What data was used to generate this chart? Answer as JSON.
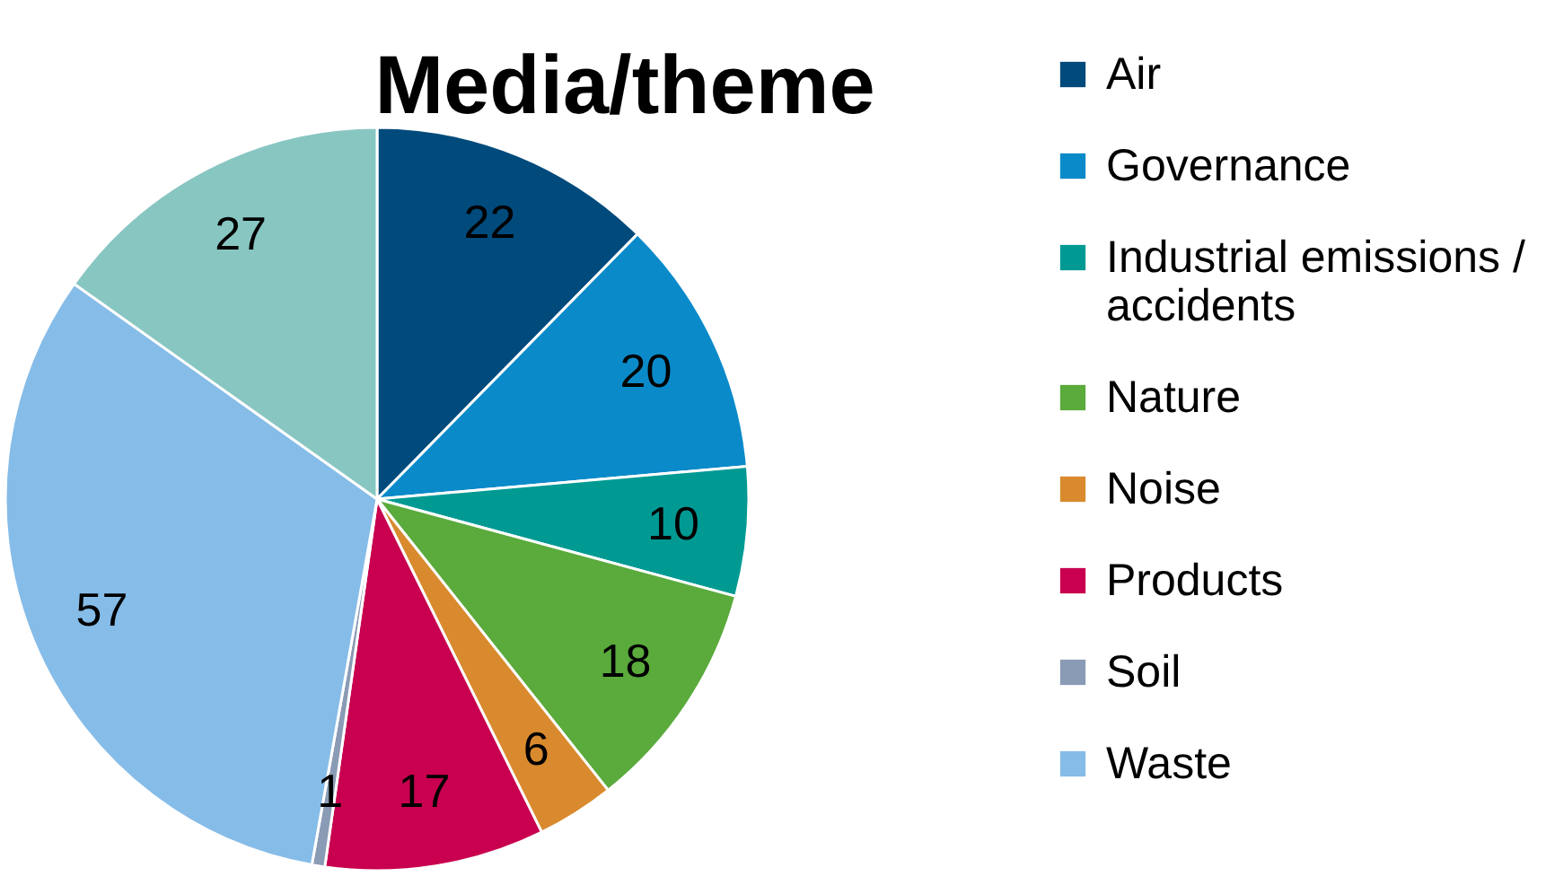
{
  "chart_data": {
    "type": "pie",
    "title": "Media/theme",
    "categories": [
      "Air",
      "Governance",
      "Industrial emissions / accidents",
      "Nature",
      "Noise",
      "Products",
      "Soil",
      "Waste",
      null
    ],
    "values": [
      22,
      20,
      10,
      18,
      6,
      17,
      1,
      57,
      27
    ],
    "colors": [
      "#004a7c",
      "#0a8ac9",
      "#009a93",
      "#5aaa3c",
      "#d98a2e",
      "#c8004f",
      "#8a9bb5",
      "#86bce8",
      "#88c6c2"
    ],
    "data_labels": true,
    "legend": "right"
  }
}
